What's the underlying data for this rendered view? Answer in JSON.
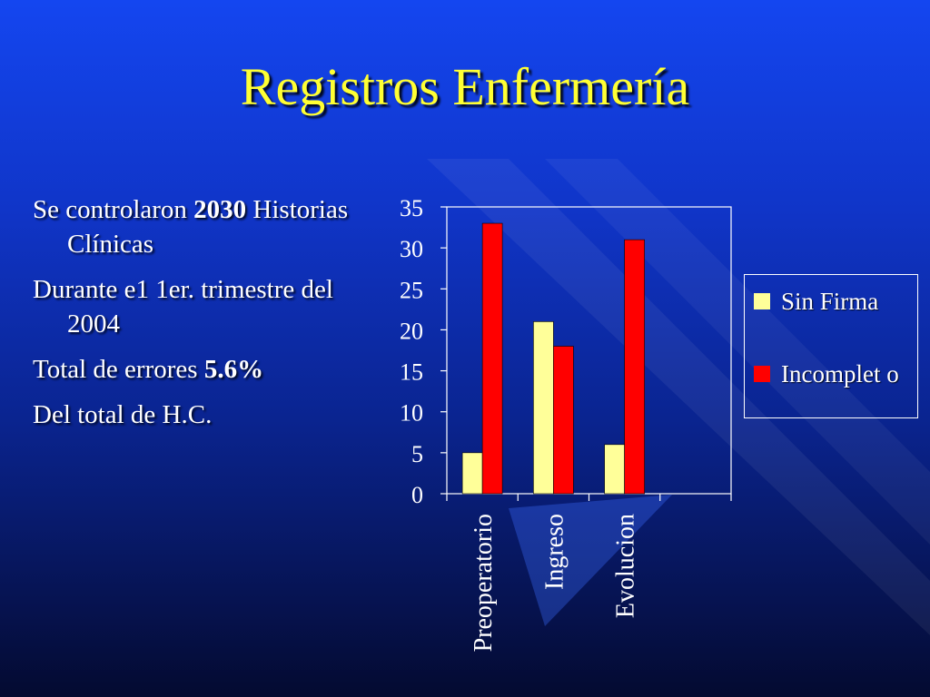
{
  "slide": {
    "title": "Registros Enfermería",
    "bullets": [
      {
        "pre": "Se controlaron ",
        "bold": "2030",
        "post": " Historias Clínicas"
      },
      {
        "pre": "Durante e1 1er. trimestre del 2004",
        "bold": "",
        "post": ""
      },
      {
        "pre": "Total de errores ",
        "bold": "5.6%",
        "post": ""
      },
      {
        "pre": "Del total de H.C.",
        "bold": "",
        "post": ""
      }
    ]
  },
  "colors": {
    "sin_firma": "#ffff99",
    "incompleto": "#ff0000",
    "text": "#ffffff",
    "title": "#ffff33"
  },
  "chart_data": {
    "type": "bar",
    "categories": [
      "Preoperatorio",
      "Ingreso",
      "Evolucion"
    ],
    "series": [
      {
        "name": "Sin Firma",
        "values": [
          5,
          21,
          6
        ]
      },
      {
        "name": "Incompleto",
        "values": [
          33,
          18,
          31
        ]
      }
    ],
    "yticks": [
      "0",
      "5",
      "10",
      "15",
      "20",
      "25",
      "30",
      "35"
    ],
    "ylim": [
      0,
      35
    ],
    "legend_labels": [
      "Sin Firma",
      "Incomplet o"
    ],
    "legend_position": "right",
    "grid": false
  }
}
